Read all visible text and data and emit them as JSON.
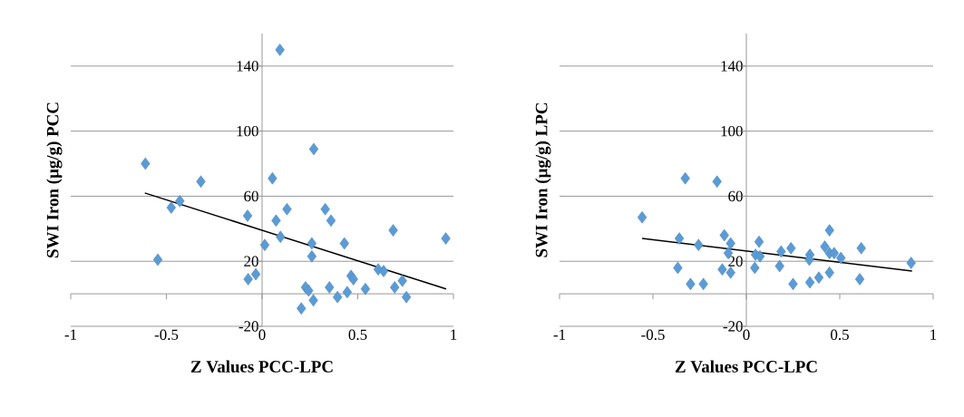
{
  "chart_data": [
    {
      "type": "scatter",
      "xlabel": "Z Values PCC-LPC",
      "ylabel": "SWI Iron (µg/g)  PCC",
      "xlim": [
        -1,
        1
      ],
      "xticks": [
        -1,
        -0.5,
        0,
        0.5,
        1
      ],
      "ylim": [
        -20,
        160
      ],
      "yticks": [
        -20,
        20,
        60,
        100,
        140
      ],
      "grid": "y",
      "series": [
        {
          "color": "#5b9bd5",
          "marker": "diamond",
          "x": [
            -0.61,
            -0.475,
            -0.43,
            -0.32,
            -0.545,
            -0.076,
            -0.073,
            -0.033,
            0.054,
            0.093,
            0.073,
            0.13,
            0.096,
            0.014,
            0.27,
            0.26,
            0.26,
            0.33,
            0.36,
            0.43,
            0.685,
            0.96,
            0.227,
            0.243,
            0.268,
            0.205,
            0.352,
            0.394,
            0.445,
            0.465,
            0.477,
            0.54,
            0.607,
            0.635,
            0.693,
            0.733,
            0.754
          ],
          "values": [
            80,
            53,
            57,
            69,
            21,
            48,
            9,
            12,
            71,
            150,
            45,
            52,
            35,
            30,
            89,
            31,
            23,
            52,
            45,
            31,
            39,
            34,
            4,
            2,
            -4,
            -9,
            4,
            -2,
            1,
            11,
            9,
            3,
            15,
            14,
            4,
            8,
            -2
          ]
        },
        {
          "type": "line",
          "color": "#000000",
          "marker": "none",
          "x": [
            -0.613,
            0.962
          ],
          "values": [
            62,
            3
          ]
        }
      ]
    },
    {
      "type": "scatter",
      "xlabel": "Z Values PCC-LPC",
      "ylabel": "SWI Iron (µg/g)  LPC",
      "xlim": [
        -1,
        1
      ],
      "xticks": [
        -1,
        -0.5,
        0,
        0.5,
        1
      ],
      "ylim": [
        -20,
        160
      ],
      "yticks": [
        -20,
        20,
        60,
        100,
        140
      ],
      "grid": "y",
      "series": [
        {
          "color": "#5b9bd5",
          "marker": "diamond",
          "x": [
            -0.558,
            -0.327,
            -0.157,
            -0.359,
            -0.256,
            -0.367,
            -0.299,
            -0.23,
            -0.118,
            -0.084,
            -0.097,
            -0.129,
            -0.084,
            0.068,
            0.049,
            0.073,
            0.045,
            0.186,
            0.239,
            0.178,
            0.25,
            0.34,
            0.337,
            0.34,
            0.388,
            0.42,
            0.445,
            0.445,
            0.47,
            0.506,
            0.445,
            0.615,
            0.607,
            0.882
          ],
          "values": [
            47,
            71,
            69,
            34,
            30,
            16,
            6,
            6,
            36,
            31,
            25,
            15,
            13,
            32,
            24,
            23,
            16,
            26,
            28,
            17,
            6,
            24,
            21,
            7,
            10,
            29,
            39,
            25,
            25,
            22,
            13,
            28,
            9,
            19
          ]
        },
        {
          "type": "line",
          "color": "#000000",
          "marker": "none",
          "x": [
            -0.558,
            0.887
          ],
          "values": [
            34,
            14
          ]
        }
      ]
    }
  ]
}
